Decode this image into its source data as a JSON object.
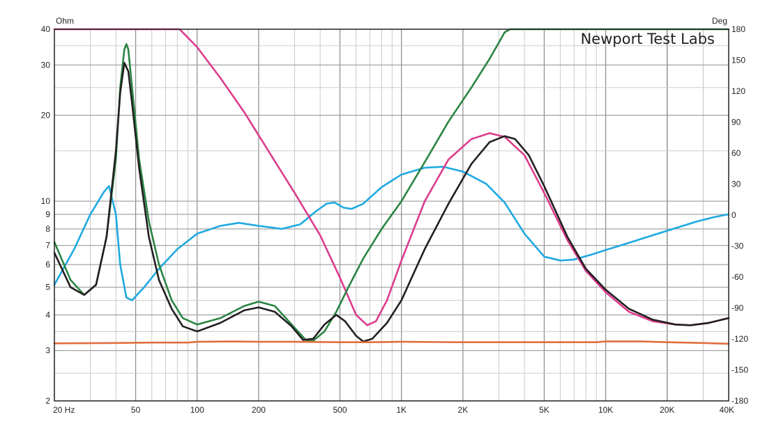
{
  "chart_data": {
    "type": "line",
    "title": "",
    "watermark": "Newport Test Labs",
    "x_scale": "log",
    "xlim": [
      20,
      40000
    ],
    "y_left": {
      "unit_label": "Ohm",
      "scale": "log",
      "lim": [
        2,
        40
      ],
      "ticks": [
        40,
        30,
        20,
        10,
        9,
        8,
        7,
        6,
        5,
        4,
        3,
        2
      ]
    },
    "y_right": {
      "unit_label": "Deg",
      "scale": "linear",
      "lim": [
        -180,
        180
      ],
      "ticks": [
        180,
        150,
        120,
        90,
        60,
        30,
        0,
        -30,
        -60,
        -90,
        -120,
        -150,
        -180
      ]
    },
    "x_ticks": [
      {
        "value": 20,
        "label": "20  Hz"
      },
      {
        "value": 50,
        "label": "50"
      },
      {
        "value": 100,
        "label": "100"
      },
      {
        "value": 200,
        "label": "200"
      },
      {
        "value": 500,
        "label": "500"
      },
      {
        "value": 1000,
        "label": "1K"
      },
      {
        "value": 2000,
        "label": "2K"
      },
      {
        "value": 5000,
        "label": "5K"
      },
      {
        "value": 10000,
        "label": "10K"
      },
      {
        "value": 20000,
        "label": "20K"
      },
      {
        "value": 40000,
        "label": "40K"
      }
    ],
    "grid": true,
    "series": [
      {
        "color": "#1ea9e1",
        "axis": "left",
        "points": [
          [
            20,
            5.1
          ],
          [
            25,
            6.8
          ],
          [
            30,
            9
          ],
          [
            35,
            10.8
          ],
          [
            37,
            11.3
          ],
          [
            40,
            9
          ],
          [
            42,
            6
          ],
          [
            45,
            4.6
          ],
          [
            48,
            4.5
          ],
          [
            55,
            5.0
          ],
          [
            65,
            5.8
          ],
          [
            80,
            6.8
          ],
          [
            100,
            7.7
          ],
          [
            130,
            8.2
          ],
          [
            160,
            8.4
          ],
          [
            200,
            8.2
          ],
          [
            260,
            8.0
          ],
          [
            320,
            8.3
          ],
          [
            380,
            9.2
          ],
          [
            430,
            9.8
          ],
          [
            470,
            9.9
          ],
          [
            520,
            9.5
          ],
          [
            570,
            9.4
          ],
          [
            650,
            9.8
          ],
          [
            800,
            11.2
          ],
          [
            1000,
            12.4
          ],
          [
            1300,
            13.1
          ],
          [
            1600,
            13.2
          ],
          [
            2000,
            12.7
          ],
          [
            2600,
            11.5
          ],
          [
            3200,
            9.9
          ],
          [
            4000,
            7.7
          ],
          [
            5000,
            6.4
          ],
          [
            6000,
            6.2
          ],
          [
            7000,
            6.25
          ],
          [
            8500,
            6.5
          ],
          [
            10000,
            6.75
          ],
          [
            13000,
            7.15
          ],
          [
            17000,
            7.6
          ],
          [
            22000,
            8.05
          ],
          [
            28000,
            8.5
          ],
          [
            34000,
            8.8
          ],
          [
            40000,
            9.0
          ]
        ]
      },
      {
        "color": "#dc3c8c",
        "axis": "left",
        "points": [
          [
            20,
            40
          ],
          [
            40,
            40
          ],
          [
            60,
            40
          ],
          [
            82,
            40
          ],
          [
            88,
            38
          ],
          [
            100,
            34.6
          ],
          [
            130,
            27
          ],
          [
            170,
            20.5
          ],
          [
            230,
            14.5
          ],
          [
            300,
            10.7
          ],
          [
            400,
            7.6
          ],
          [
            500,
            5.4
          ],
          [
            600,
            4.0
          ],
          [
            680,
            3.68
          ],
          [
            750,
            3.8
          ],
          [
            850,
            4.5
          ],
          [
            1000,
            6.2
          ],
          [
            1300,
            10
          ],
          [
            1700,
            14
          ],
          [
            2200,
            16.5
          ],
          [
            2700,
            17.3
          ],
          [
            3200,
            16.8
          ],
          [
            4000,
            14.5
          ],
          [
            5000,
            10.7
          ],
          [
            6500,
            7.3
          ],
          [
            8000,
            5.7
          ],
          [
            10000,
            4.8
          ],
          [
            13000,
            4.1
          ],
          [
            17000,
            3.8
          ],
          [
            22000,
            3.7
          ],
          [
            26000,
            3.68
          ],
          [
            32000,
            3.75
          ],
          [
            40000,
            3.9
          ]
        ]
      },
      {
        "color": "#2a8443",
        "axis": "left",
        "points": [
          [
            20,
            7.2
          ],
          [
            24,
            5.3
          ],
          [
            28,
            4.7
          ],
          [
            32,
            5.1
          ],
          [
            36,
            7.5
          ],
          [
            40,
            14
          ],
          [
            42,
            25
          ],
          [
            44,
            34
          ],
          [
            45,
            35.5
          ],
          [
            46,
            34
          ],
          [
            48,
            25
          ],
          [
            52,
            14
          ],
          [
            58,
            8.5
          ],
          [
            65,
            6.0
          ],
          [
            75,
            4.5
          ],
          [
            85,
            3.9
          ],
          [
            100,
            3.7
          ],
          [
            130,
            3.9
          ],
          [
            170,
            4.3
          ],
          [
            200,
            4.45
          ],
          [
            240,
            4.3
          ],
          [
            290,
            3.7
          ],
          [
            340,
            3.27
          ],
          [
            370,
            3.25
          ],
          [
            420,
            3.5
          ],
          [
            480,
            4.1
          ],
          [
            550,
            5.0
          ],
          [
            650,
            6.3
          ],
          [
            800,
            8.0
          ],
          [
            1000,
            10.0
          ],
          [
            1300,
            13.7
          ],
          [
            1700,
            19
          ],
          [
            2200,
            25
          ],
          [
            2700,
            31.5
          ],
          [
            3200,
            39
          ],
          [
            3400,
            40
          ],
          [
            5000,
            40
          ],
          [
            10000,
            40
          ],
          [
            20000,
            40
          ],
          [
            40000,
            40
          ]
        ]
      },
      {
        "color": "#231f20",
        "axis": "left",
        "points": [
          [
            20,
            6.6
          ],
          [
            24,
            5.0
          ],
          [
            28,
            4.7
          ],
          [
            32,
            5.1
          ],
          [
            36,
            7.5
          ],
          [
            40,
            15
          ],
          [
            42,
            24
          ],
          [
            44,
            30.5
          ],
          [
            46,
            28.5
          ],
          [
            48,
            22
          ],
          [
            52,
            13
          ],
          [
            58,
            7.5
          ],
          [
            65,
            5.3
          ],
          [
            75,
            4.2
          ],
          [
            85,
            3.65
          ],
          [
            100,
            3.5
          ],
          [
            130,
            3.75
          ],
          [
            170,
            4.15
          ],
          [
            200,
            4.25
          ],
          [
            240,
            4.1
          ],
          [
            290,
            3.65
          ],
          [
            330,
            3.27
          ],
          [
            370,
            3.3
          ],
          [
            420,
            3.7
          ],
          [
            480,
            4.0
          ],
          [
            530,
            3.8
          ],
          [
            600,
            3.38
          ],
          [
            650,
            3.23
          ],
          [
            720,
            3.3
          ],
          [
            850,
            3.75
          ],
          [
            1000,
            4.5
          ],
          [
            1300,
            6.8
          ],
          [
            1700,
            9.8
          ],
          [
            2200,
            13.5
          ],
          [
            2700,
            16.1
          ],
          [
            3200,
            16.9
          ],
          [
            3600,
            16.5
          ],
          [
            4200,
            14.5
          ],
          [
            5000,
            11.3
          ],
          [
            6500,
            7.5
          ],
          [
            8000,
            5.8
          ],
          [
            10000,
            4.9
          ],
          [
            13000,
            4.2
          ],
          [
            17000,
            3.85
          ],
          [
            22000,
            3.7
          ],
          [
            26000,
            3.68
          ],
          [
            32000,
            3.75
          ],
          [
            40000,
            3.9
          ]
        ]
      },
      {
        "color": "#e26e3f",
        "axis": "left",
        "points": [
          [
            20,
            3.18
          ],
          [
            40,
            3.19
          ],
          [
            60,
            3.2
          ],
          [
            90,
            3.2
          ],
          [
            100,
            3.22
          ],
          [
            150,
            3.23
          ],
          [
            200,
            3.22
          ],
          [
            300,
            3.22
          ],
          [
            500,
            3.21
          ],
          [
            700,
            3.21
          ],
          [
            1000,
            3.22
          ],
          [
            2000,
            3.21
          ],
          [
            5000,
            3.21
          ],
          [
            9000,
            3.21
          ],
          [
            10000,
            3.23
          ],
          [
            15000,
            3.23
          ],
          [
            20000,
            3.21
          ],
          [
            30000,
            3.19
          ],
          [
            40000,
            3.17
          ]
        ]
      }
    ]
  }
}
